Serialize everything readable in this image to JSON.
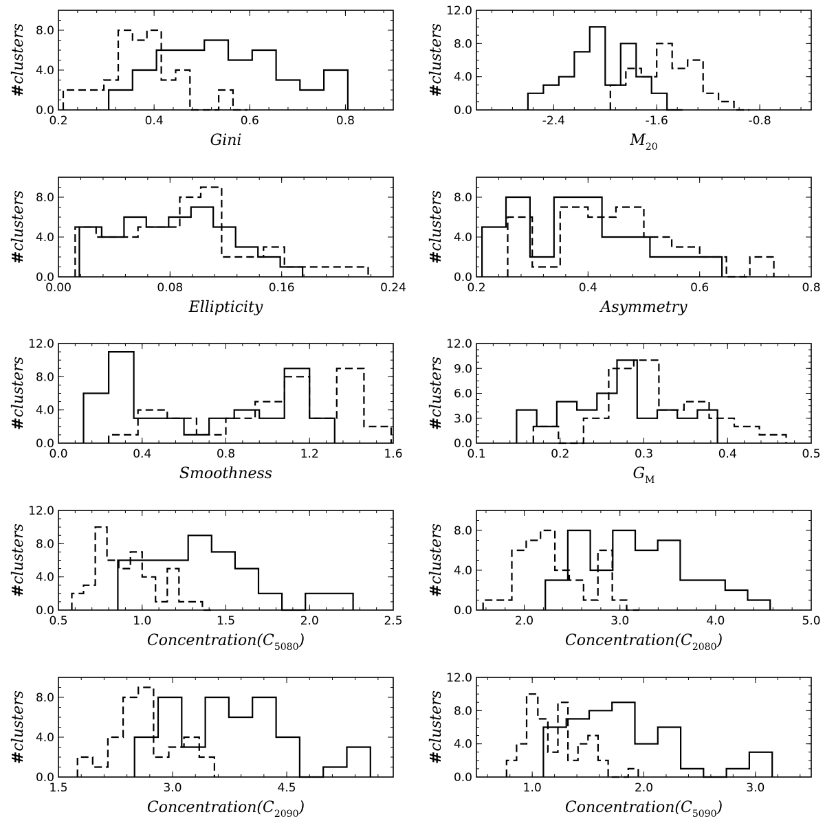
{
  "chart_data": [
    {
      "type": "histogram",
      "xlabel": "Gini",
      "ylabel": "#clusters",
      "xlim": [
        0.2,
        0.9
      ],
      "ylim": [
        0,
        10
      ],
      "xticks": [
        0.2,
        0.4,
        0.6,
        0.8
      ],
      "xtick_labels": [
        "0.2",
        "0.4",
        "0.6",
        "0.8"
      ],
      "yticks": [
        0,
        4,
        8
      ],
      "ytick_labels": [
        "0.0",
        "4.0",
        "8.0"
      ],
      "series": [
        {
          "name": "solid",
          "style": "solid",
          "edges": [
            0.305,
            0.355,
            0.405,
            0.455,
            0.505,
            0.555,
            0.605,
            0.655,
            0.705,
            0.755,
            0.805
          ],
          "counts": [
            2,
            4,
            6,
            6,
            7,
            5,
            6,
            3,
            2,
            4
          ]
        },
        {
          "name": "dashed",
          "style": "dashed",
          "edges": [
            0.21,
            0.235,
            0.265,
            0.295,
            0.325,
            0.355,
            0.385,
            0.415,
            0.445,
            0.475,
            0.505,
            0.535,
            0.565,
            0.595
          ],
          "counts": [
            2,
            2,
            2,
            3,
            8,
            7,
            8,
            3,
            4,
            0,
            0,
            2,
            0
          ]
        }
      ]
    },
    {
      "type": "histogram",
      "xlabel": "M",
      "xlabel_sub": "20",
      "ylabel": "#clusters",
      "xlim": [
        -3.0,
        -0.4
      ],
      "ylim": [
        0,
        12
      ],
      "xticks": [
        -2.4,
        -1.6,
        -0.8
      ],
      "xtick_labels": [
        "-2.4",
        "-1.6",
        "-0.8"
      ],
      "yticks": [
        0,
        4,
        8,
        12
      ],
      "ytick_labels": [
        "0.0",
        "4.0",
        "8.0",
        "12.0"
      ],
      "series": [
        {
          "name": "solid",
          "style": "solid",
          "edges": [
            -2.6,
            -2.48,
            -2.36,
            -2.24,
            -2.12,
            -2.0,
            -1.88,
            -1.76,
            -1.64,
            -1.52,
            -1.4
          ],
          "counts": [
            2,
            3,
            4,
            7,
            10,
            3,
            8,
            4,
            2,
            0
          ]
        },
        {
          "name": "dashed",
          "style": "dashed",
          "edges": [
            -1.96,
            -1.84,
            -1.72,
            -1.6,
            -1.48,
            -1.36,
            -1.24,
            -1.12,
            -1.0,
            -0.88
          ],
          "counts": [
            3,
            5,
            4,
            8,
            5,
            6,
            2,
            1,
            0
          ]
        }
      ]
    },
    {
      "type": "histogram",
      "xlabel": "Ellipticity",
      "ylabel": "#clusters",
      "xlim": [
        0.0,
        0.24
      ],
      "ylim": [
        0,
        10
      ],
      "xticks": [
        0.0,
        0.08,
        0.16,
        0.24
      ],
      "xtick_labels": [
        "0.00",
        "0.08",
        "0.16",
        "0.24"
      ],
      "yticks": [
        0,
        4,
        8
      ],
      "ytick_labels": [
        "0.0",
        "4.0",
        "8.0"
      ],
      "series": [
        {
          "name": "solid",
          "style": "solid",
          "edges": [
            0.015,
            0.031,
            0.047,
            0.063,
            0.079,
            0.095,
            0.111,
            0.127,
            0.143,
            0.159,
            0.175
          ],
          "counts": [
            5,
            4,
            6,
            5,
            6,
            7,
            5,
            3,
            2,
            1
          ]
        },
        {
          "name": "dashed",
          "style": "dashed",
          "edges": [
            0.012,
            0.027,
            0.042,
            0.057,
            0.072,
            0.087,
            0.102,
            0.117,
            0.132,
            0.147,
            0.162,
            0.177,
            0.192,
            0.207,
            0.222
          ],
          "counts": [
            5,
            4,
            4,
            5,
            5,
            8,
            9,
            2,
            2,
            3,
            1,
            1,
            1,
            1
          ]
        }
      ]
    },
    {
      "type": "histogram",
      "xlabel": "Asymmetry",
      "ylabel": "#clusters",
      "xlim": [
        0.2,
        0.8
      ],
      "ylim": [
        0,
        10
      ],
      "xticks": [
        0.2,
        0.4,
        0.6,
        0.8
      ],
      "xtick_labels": [
        "0.2",
        "0.4",
        "0.6",
        "0.8"
      ],
      "yticks": [
        0,
        4,
        8
      ],
      "ytick_labels": [
        "0.0",
        "4.0",
        "8.0"
      ],
      "series": [
        {
          "name": "solid",
          "style": "solid",
          "edges": [
            0.21,
            0.253,
            0.296,
            0.339,
            0.382,
            0.425,
            0.468,
            0.511,
            0.554,
            0.597,
            0.64
          ],
          "counts": [
            5,
            8,
            2,
            8,
            8,
            4,
            4,
            2,
            2,
            2
          ]
        },
        {
          "name": "dashed",
          "style": "dashed",
          "edges": [
            0.256,
            0.3,
            0.35,
            0.4,
            0.45,
            0.5,
            0.55,
            0.6,
            0.648,
            0.69,
            0.733
          ],
          "counts": [
            6,
            1,
            7,
            6,
            7,
            4,
            3,
            2,
            0,
            2
          ]
        }
      ]
    },
    {
      "type": "histogram",
      "xlabel": "Smoothness",
      "ylabel": "#clusters",
      "xlim": [
        0.0,
        1.6
      ],
      "ylim": [
        0,
        12
      ],
      "xticks": [
        0.0,
        0.4,
        0.8,
        1.2,
        1.6
      ],
      "xtick_labels": [
        "0.0",
        "0.4",
        "0.8",
        "1.2",
        "1.6"
      ],
      "yticks": [
        0,
        4,
        8,
        12
      ],
      "ytick_labels": [
        "0.0",
        "4.0",
        "8.0",
        "12.0"
      ],
      "series": [
        {
          "name": "solid",
          "style": "solid",
          "edges": [
            0.12,
            0.24,
            0.36,
            0.48,
            0.6,
            0.72,
            0.84,
            0.96,
            1.08,
            1.2,
            1.32
          ],
          "counts": [
            6,
            11,
            3,
            3,
            1,
            3,
            4,
            3,
            9,
            3
          ]
        },
        {
          "name": "dashed",
          "style": "dashed",
          "edges": [
            0.24,
            0.38,
            0.52,
            0.66,
            0.8,
            0.94,
            1.08,
            1.2,
            1.33,
            1.46,
            1.59
          ],
          "counts": [
            1,
            4,
            3,
            1,
            3,
            5,
            8,
            3,
            9,
            2
          ]
        }
      ]
    },
    {
      "type": "histogram",
      "xlabel": "G",
      "xlabel_sub": "M",
      "ylabel": "#clusters",
      "xlim": [
        0.1,
        0.5
      ],
      "ylim": [
        0,
        12
      ],
      "xticks": [
        0.1,
        0.2,
        0.3,
        0.4,
        0.5
      ],
      "xtick_labels": [
        "0.1",
        "0.2",
        "0.3",
        "0.4",
        "0.5"
      ],
      "yticks": [
        0,
        3,
        6,
        9,
        12
      ],
      "ytick_labels": [
        "0.0",
        "3.0",
        "6.0",
        "9.0",
        "12.0"
      ],
      "series": [
        {
          "name": "solid",
          "style": "solid",
          "edges": [
            0.148,
            0.172,
            0.196,
            0.22,
            0.244,
            0.268,
            0.292,
            0.316,
            0.34,
            0.364,
            0.388
          ],
          "counts": [
            4,
            2,
            5,
            4,
            6,
            10,
            3,
            4,
            3,
            4
          ]
        },
        {
          "name": "dashed",
          "style": "dashed",
          "edges": [
            0.168,
            0.198,
            0.228,
            0.258,
            0.288,
            0.318,
            0.348,
            0.378,
            0.408,
            0.438,
            0.47
          ],
          "counts": [
            2,
            0,
            3,
            9,
            10,
            4,
            5,
            3,
            2,
            1
          ]
        }
      ]
    },
    {
      "type": "histogram",
      "xlabel": "Concentration(C",
      "xlabel_sub": "5080",
      "xlabel_tail": ")",
      "ylabel": "#clusters",
      "xlim": [
        0.5,
        2.5
      ],
      "ylim": [
        0,
        12
      ],
      "xticks": [
        0.5,
        1.0,
        1.5,
        2.0,
        2.5
      ],
      "xtick_labels": [
        "0.5",
        "1.0",
        "1.5",
        "2.0",
        "2.5"
      ],
      "yticks": [
        0,
        4,
        8,
        12
      ],
      "ytick_labels": [
        "0.0",
        "4.0",
        "8.0",
        "12.0"
      ],
      "series": [
        {
          "name": "solid",
          "style": "solid",
          "edges": [
            0.855,
            0.995,
            1.135,
            1.275,
            1.415,
            1.555,
            1.695,
            1.835,
            1.975,
            2.115,
            2.26
          ],
          "counts": [
            6,
            6,
            6,
            9,
            7,
            5,
            2,
            0,
            2,
            2
          ]
        },
        {
          "name": "dashed",
          "style": "dashed",
          "edges": [
            0.58,
            0.65,
            0.72,
            0.79,
            0.86,
            0.93,
            1.0,
            1.08,
            1.15,
            1.22,
            1.29,
            1.36,
            1.43
          ],
          "counts": [
            2,
            3,
            10,
            6,
            5,
            7,
            4,
            1,
            5,
            1,
            1,
            0
          ]
        }
      ]
    },
    {
      "type": "histogram",
      "xlabel": "Concentration(C",
      "xlabel_sub": "2080",
      "xlabel_tail": ")",
      "ylabel": "#clusters",
      "xlim": [
        1.5,
        5.0
      ],
      "ylim": [
        0,
        10
      ],
      "xticks": [
        2.0,
        3.0,
        4.0,
        5.0
      ],
      "xtick_labels": [
        "2.0",
        "3.0",
        "4.0",
        "5.0"
      ],
      "yticks": [
        0,
        4,
        8
      ],
      "ytick_labels": [
        "0.0",
        "4.0",
        "8.0"
      ],
      "series": [
        {
          "name": "solid",
          "style": "solid",
          "edges": [
            2.22,
            2.455,
            2.69,
            2.925,
            3.16,
            3.395,
            3.63,
            3.865,
            4.1,
            4.335,
            4.57
          ],
          "counts": [
            3,
            8,
            4,
            8,
            6,
            7,
            3,
            3,
            2,
            1
          ]
        },
        {
          "name": "dashed",
          "style": "dashed",
          "edges": [
            1.57,
            1.72,
            1.87,
            2.02,
            2.17,
            2.32,
            2.47,
            2.62,
            2.77,
            2.92,
            3.07,
            3.2
          ],
          "counts": [
            1,
            1,
            6,
            7,
            8,
            4,
            3,
            1,
            6,
            1,
            0
          ]
        }
      ]
    },
    {
      "type": "histogram",
      "xlabel": "Concentration(C",
      "xlabel_sub": "2090",
      "xlabel_tail": ")",
      "ylabel": "#clusters",
      "xlim": [
        1.5,
        5.9
      ],
      "ylim": [
        0,
        10
      ],
      "xticks": [
        1.5,
        3.0,
        4.5
      ],
      "xtick_labels": [
        "1.5",
        "3.0",
        "4.5"
      ],
      "yticks": [
        0,
        4,
        8
      ],
      "ytick_labels": [
        "0.0",
        "4.0",
        "8.0"
      ],
      "series": [
        {
          "name": "solid",
          "style": "solid",
          "edges": [
            2.5,
            2.81,
            3.12,
            3.43,
            3.74,
            4.05,
            4.36,
            4.67,
            4.98,
            5.29,
            5.6
          ],
          "counts": [
            4,
            8,
            3,
            8,
            6,
            8,
            4,
            0,
            1,
            3
          ]
        },
        {
          "name": "dashed",
          "style": "dashed",
          "edges": [
            1.75,
            1.95,
            2.15,
            2.35,
            2.55,
            2.75,
            2.95,
            3.15,
            3.35,
            3.55
          ],
          "counts": [
            2,
            1,
            4,
            8,
            9,
            2,
            3,
            4,
            2
          ]
        }
      ]
    },
    {
      "type": "histogram",
      "xlabel": "Concentration(C",
      "xlabel_sub": "5090",
      "xlabel_tail": ")",
      "ylabel": "#clusters",
      "xlim": [
        0.5,
        3.5
      ],
      "ylim": [
        0,
        12
      ],
      "xticks": [
        1.0,
        2.0,
        3.0
      ],
      "xtick_labels": [
        "1.0",
        "2.0",
        "3.0"
      ],
      "yticks": [
        0,
        4,
        8,
        12
      ],
      "ytick_labels": [
        "0.0",
        "4.0",
        "8.0",
        "12.0"
      ],
      "series": [
        {
          "name": "solid",
          "style": "solid",
          "edges": [
            1.1,
            1.305,
            1.51,
            1.715,
            1.92,
            2.125,
            2.33,
            2.535,
            2.74,
            2.945,
            3.15
          ],
          "counts": [
            6,
            7,
            8,
            9,
            4,
            6,
            1,
            0,
            1,
            3
          ]
        },
        {
          "name": "dashed",
          "style": "dashed",
          "edges": [
            0.77,
            0.86,
            0.95,
            1.05,
            1.14,
            1.23,
            1.32,
            1.41,
            1.5,
            1.59,
            1.68,
            1.77,
            1.86,
            1.95
          ],
          "counts": [
            2,
            4,
            10,
            7,
            3,
            9,
            2,
            4,
            5,
            2,
            0,
            0,
            1
          ]
        }
      ]
    }
  ]
}
